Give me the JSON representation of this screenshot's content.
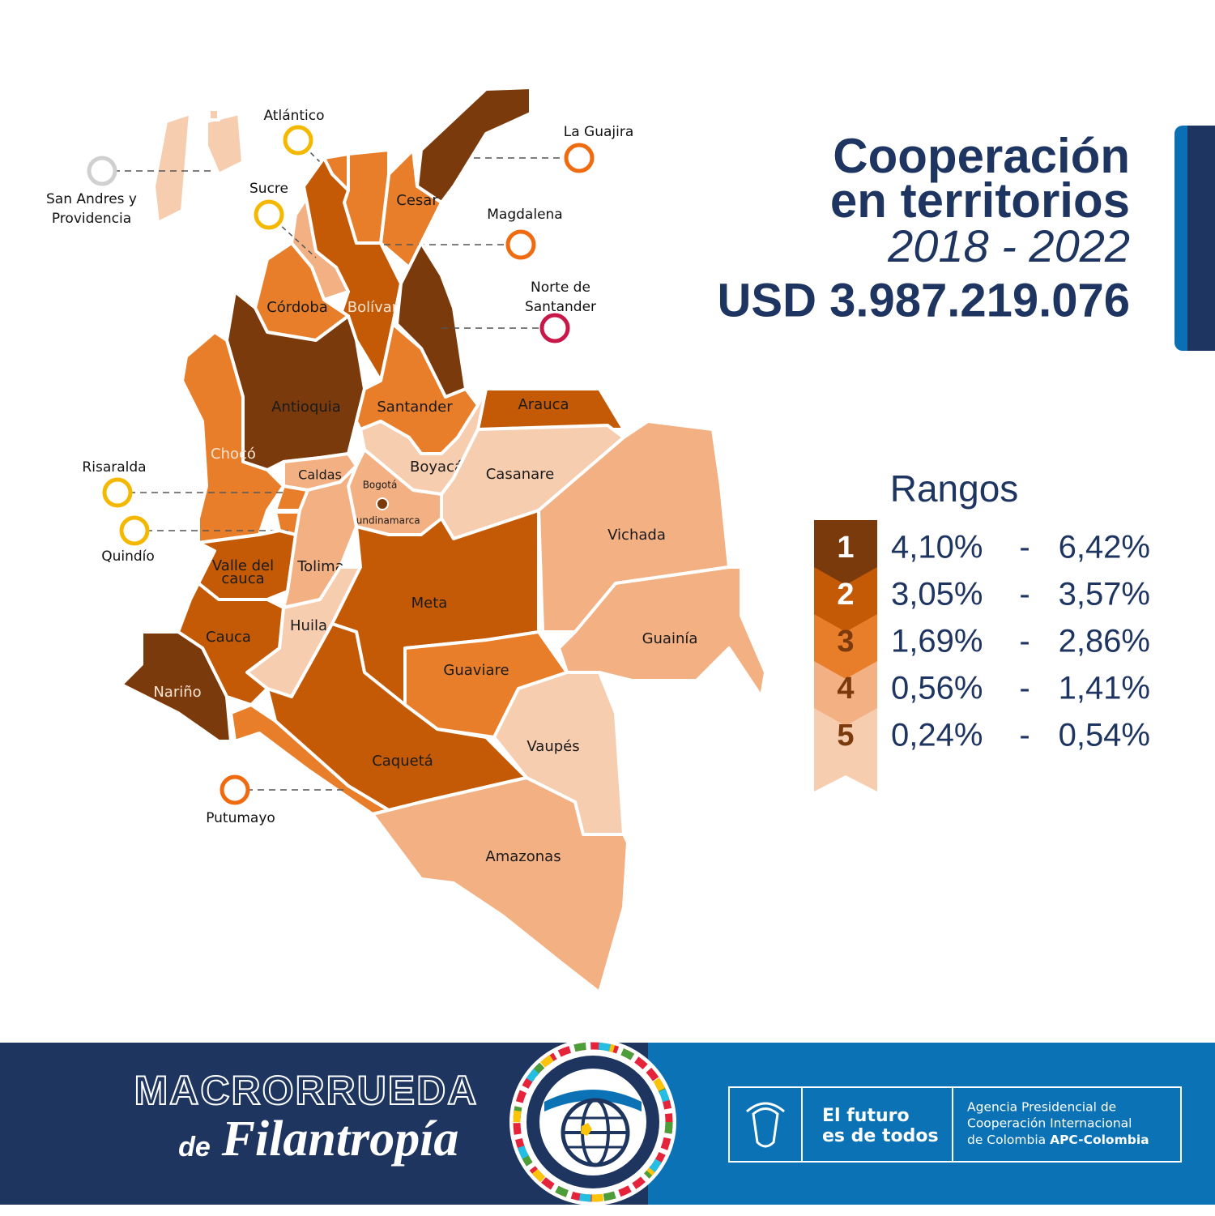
{
  "header": {
    "title_lines": [
      "Cooperación",
      "en territorios"
    ],
    "period": "2018 - 2022",
    "total": "USD 3.987.219.076"
  },
  "map": {
    "capital": "Bogotá",
    "departments": [
      {
        "label": [
          "La Guajira"
        ],
        "color": "#7b3a0c",
        "marker_color": "#f06a10"
      },
      {
        "label": [
          "Cesar"
        ],
        "color": "#e97e2a"
      },
      {
        "label": [
          "Magdalena"
        ],
        "color": "#e97e2a",
        "marker_color": "#f06a10"
      },
      {
        "label": [
          "Atlántico"
        ],
        "color": "#e97e2a",
        "marker_color": "#f5b800"
      },
      {
        "label": [
          "Bolívar"
        ],
        "color": "#c45a06"
      },
      {
        "label": [
          "Sucre"
        ],
        "color": "#f2b083",
        "marker_color": "#f5b800"
      },
      {
        "label": [
          "Córdoba"
        ],
        "color": "#e97e2a"
      },
      {
        "label": [
          "Norte de",
          "Santander"
        ],
        "color": "#7b3a0c",
        "marker_color": "#c8184a"
      },
      {
        "label": [
          "Antioquia"
        ],
        "color": "#7b3a0c"
      },
      {
        "label": [
          "Chocó"
        ],
        "color": "#e97e2a"
      },
      {
        "label": [
          "Santander"
        ],
        "color": "#e97e2a"
      },
      {
        "label": [
          "Arauca"
        ],
        "color": "#c45a06"
      },
      {
        "label": [
          "Boyacá"
        ],
        "color": "#f7cdb0"
      },
      {
        "label": [
          "Casanare"
        ],
        "color": "#f7cdb0"
      },
      {
        "label": [
          "Caldas"
        ],
        "color": "#f2b083"
      },
      {
        "label": [
          "Cundinamarca"
        ],
        "color": "#f2b083"
      },
      {
        "label": [
          "Risaralda"
        ],
        "color": "#e97e2a",
        "marker_color": "#f5b800"
      },
      {
        "label": [
          "Quindío"
        ],
        "color": "#e97e2a",
        "marker_color": "#f5b800"
      },
      {
        "label": [
          "Valle del",
          "cauca"
        ],
        "color": "#c45a06"
      },
      {
        "label": [
          "Tolima"
        ],
        "color": "#f2b083"
      },
      {
        "label": [
          "Huila"
        ],
        "color": "#f7cdb0"
      },
      {
        "label": [
          "Meta"
        ],
        "color": "#c45a06"
      },
      {
        "label": [
          "Cauca"
        ],
        "color": "#c45a06"
      },
      {
        "label": [
          "Nariño"
        ],
        "color": "#7b3a0c"
      },
      {
        "label": [
          "Putumayo"
        ],
        "color": "#e97e2a",
        "marker_color": "#f06a10"
      },
      {
        "label": [
          "Caquetá"
        ],
        "color": "#c45a06"
      },
      {
        "label": [
          "Guaviare"
        ],
        "color": "#e97e2a"
      },
      {
        "label": [
          "Vichada"
        ],
        "color": "#f2b083"
      },
      {
        "label": [
          "Guainía"
        ],
        "color": "#f2b083"
      },
      {
        "label": [
          "Vaupés"
        ],
        "color": "#f7cdb0"
      },
      {
        "label": [
          "Amazonas"
        ],
        "color": "#f2b083"
      },
      {
        "label": [
          "San Andres y",
          "Providencia"
        ],
        "color": "#f7cdb0",
        "marker_color": "#d0d0d0"
      }
    ]
  },
  "legend": {
    "title": "Rangos",
    "separator": "-",
    "ranges": [
      {
        "rank": "1",
        "min": "4,10%",
        "max": "6,42%",
        "color": "#7b3a0c"
      },
      {
        "rank": "2",
        "min": "3,05%",
        "max": "3,57%",
        "color": "#c45a06"
      },
      {
        "rank": "3",
        "min": "1,69%",
        "max": "2,86%",
        "color": "#e97e2a"
      },
      {
        "rank": "4",
        "min": "0,56%",
        "max": "1,41%",
        "color": "#f2b083"
      },
      {
        "rank": "5",
        "min": "0,24%",
        "max": "0,54%",
        "color": "#f7cdb0"
      }
    ]
  },
  "footer": {
    "event_title": "MACRORRUEDA",
    "event_prefix": "de",
    "event_subtitle": "Filantropía",
    "slogan": [
      "El futuro",
      "es de todos"
    ],
    "agency": [
      "Agencia Presidencial de",
      "Cooperación Internacional"
    ],
    "agency_last": "de Colombia",
    "agency_brand": "APC-Colombia"
  }
}
